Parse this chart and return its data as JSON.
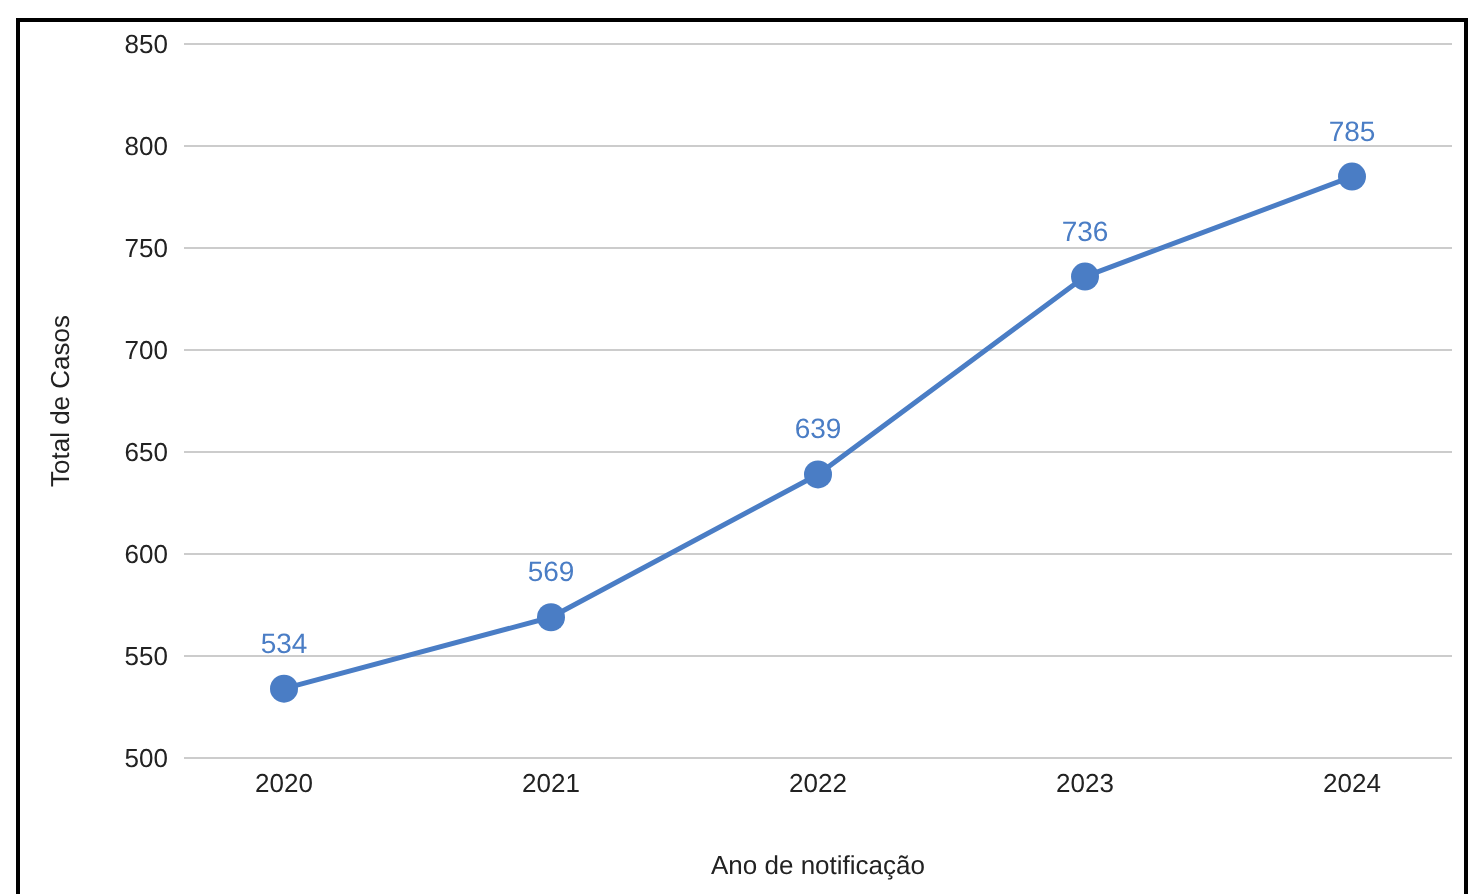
{
  "chart_data": {
    "type": "line",
    "xlabel": "Ano de notificação",
    "ylabel": "Total de Casos",
    "categories": [
      "2020",
      "2021",
      "2022",
      "2023",
      "2024"
    ],
    "series": [
      {
        "color": "#4a7dc5",
        "values": [
          534,
          569,
          639,
          736,
          785
        ]
      }
    ],
    "ylim": [
      500,
      850
    ],
    "yticks": [
      500,
      550,
      600,
      650,
      700,
      750,
      800,
      850
    ],
    "grid": "y",
    "marker": "circle",
    "data_labels": true
  }
}
